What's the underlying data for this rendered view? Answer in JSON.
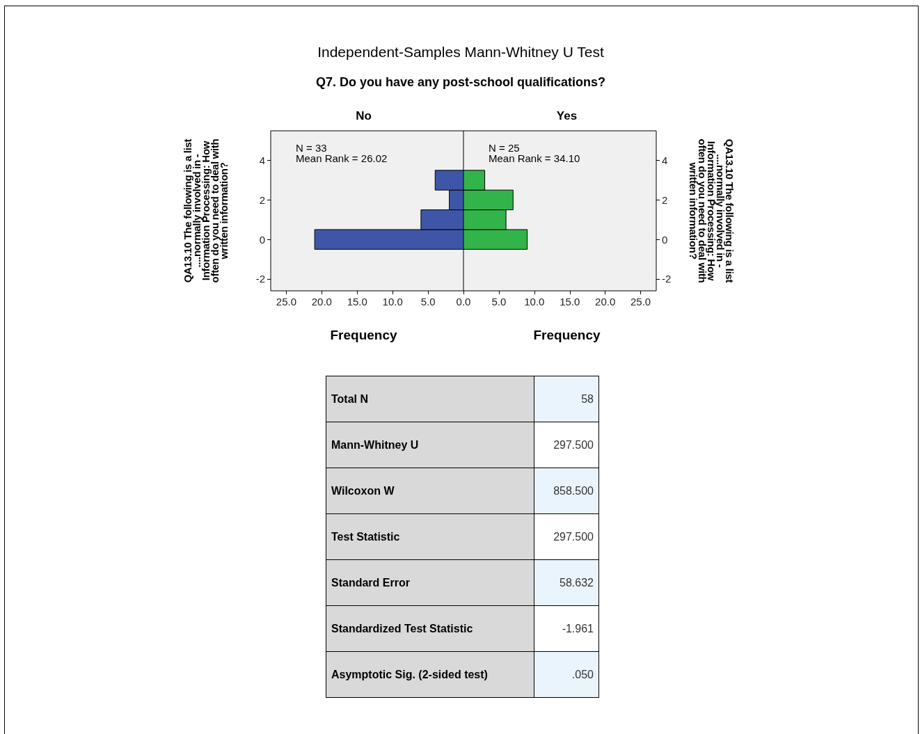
{
  "chart_data": [
    {
      "type": "histogram",
      "orientation": "horizontal",
      "title": "Independent-Samples Mann-Whitney U Test",
      "subtitle": "Q7. Do you have any post-school qualifications?",
      "xlabel": "Frequency",
      "ylabel": "QA13.10 The following is a list ....normally involved in - Information Processing: How often do you need to deal with written information?",
      "annotations": [
        "No",
        "N = 33",
        "Mean Rank = 26.02"
      ],
      "bins": [
        -0.5,
        0.5,
        1.5,
        2.5,
        3.5
      ],
      "values": [
        21,
        6,
        2,
        4
      ],
      "color": "#3f56a8",
      "xlim": [
        27.2,
        0
      ],
      "xticks": [
        {
          "value": 25,
          "label": "25.0"
        },
        {
          "value": 20,
          "label": "20.0"
        },
        {
          "value": 15,
          "label": "15.0"
        },
        {
          "value": 10,
          "label": "10.0"
        },
        {
          "value": 5,
          "label": "5.0"
        },
        {
          "value": 0,
          "label": "0.0"
        }
      ],
      "ylim": [
        -2.6,
        5.5
      ],
      "yticks": [
        -2,
        0,
        2,
        4
      ],
      "grid": false
    },
    {
      "type": "histogram",
      "orientation": "horizontal",
      "xlabel": "Frequency",
      "ylabel": "QA13.10 The following is a list ....normally involved in - Information Processing: How often do you need to deal with written information?",
      "annotations": [
        "Yes",
        "N = 25",
        "Mean Rank = 34.10"
      ],
      "bins": [
        -0.5,
        0.5,
        1.5,
        2.5,
        3.5
      ],
      "values": [
        9,
        6,
        7,
        3
      ],
      "color": "#33b44a",
      "xlim": [
        0,
        27.2
      ],
      "xticks": [
        {
          "value": 0,
          "label": null
        },
        {
          "value": 5,
          "label": "5.0"
        },
        {
          "value": 10,
          "label": "10.0"
        },
        {
          "value": 15,
          "label": "15.0"
        },
        {
          "value": 20,
          "label": "20.0"
        },
        {
          "value": 25,
          "label": "25.0"
        }
      ],
      "ylim": [
        -2.6,
        5.5
      ],
      "yticks": [
        -2,
        0,
        2,
        4
      ],
      "grid": false
    },
    {
      "type": "other",
      "categories": [
        "Total N",
        "Mann-Whitney U",
        "Wilcoxon W",
        "Test Statistic",
        "Standard Error",
        "Standardized Test Statistic",
        "Asymptotic Sig. (2-sided test)"
      ],
      "value_labels": [
        "58",
        "297.500",
        "858.500",
        "297.500",
        "58.632",
        "-1.961",
        ".050"
      ]
    }
  ]
}
